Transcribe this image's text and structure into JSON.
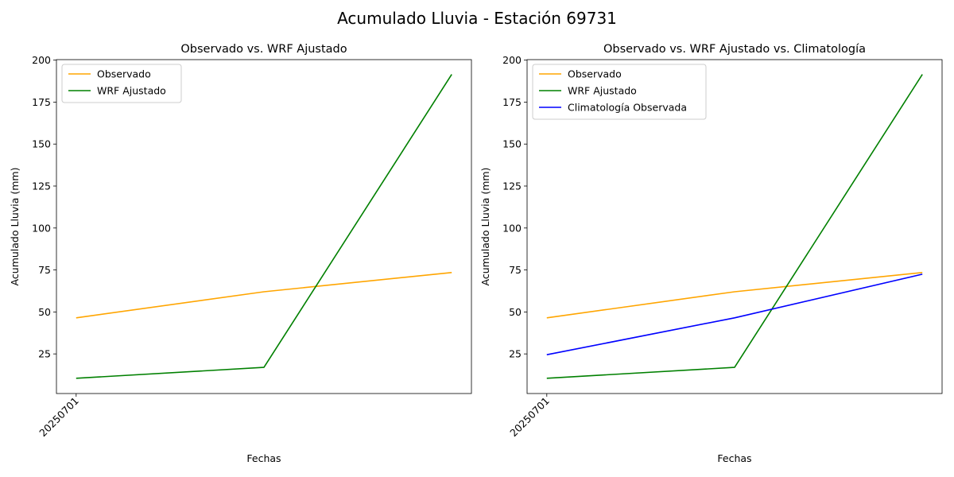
{
  "suptitle": "Acumulado Lluvia - Estación 69731",
  "chart_data": [
    {
      "type": "line",
      "title": "Observado vs. WRF Ajustado",
      "xlabel": "Fechas",
      "ylabel": "Acumulado Lluvia (mm)",
      "x": [
        0,
        1,
        2
      ],
      "xticks": [
        {
          "x": 0,
          "label": "20250701"
        }
      ],
      "xlim": [
        -0.105,
        2.105
      ],
      "ylim": [
        1.4,
        200.3
      ],
      "yticks": [
        25,
        50,
        75,
        100,
        125,
        150,
        175,
        200
      ],
      "grid": false,
      "legend": "top-left",
      "series": [
        {
          "name": "Observado",
          "color": "#ffa500",
          "values": [
            46.5,
            62.0,
            73.5
          ]
        },
        {
          "name": "WRF Ajustado",
          "color": "#008000",
          "values": [
            10.5,
            17.0,
            191.5
          ]
        }
      ]
    },
    {
      "type": "line",
      "title": "Observado vs. WRF Ajustado vs. Climatología",
      "xlabel": "Fechas",
      "ylabel": "Acumulado Lluvia (mm)",
      "x": [
        0,
        1,
        2
      ],
      "xticks": [
        {
          "x": 0,
          "label": "20250701"
        }
      ],
      "xlim": [
        -0.105,
        2.105
      ],
      "ylim": [
        1.4,
        200.3
      ],
      "yticks": [
        25,
        50,
        75,
        100,
        125,
        150,
        175,
        200
      ],
      "grid": false,
      "legend": "top-left",
      "series": [
        {
          "name": "Observado",
          "color": "#ffa500",
          "values": [
            46.5,
            62.0,
            73.5
          ]
        },
        {
          "name": "WRF Ajustado",
          "color": "#008000",
          "values": [
            10.5,
            17.0,
            191.5
          ]
        },
        {
          "name": "Climatología Observada",
          "color": "#0000ff",
          "values": [
            24.5,
            46.5,
            72.5
          ]
        }
      ]
    }
  ]
}
